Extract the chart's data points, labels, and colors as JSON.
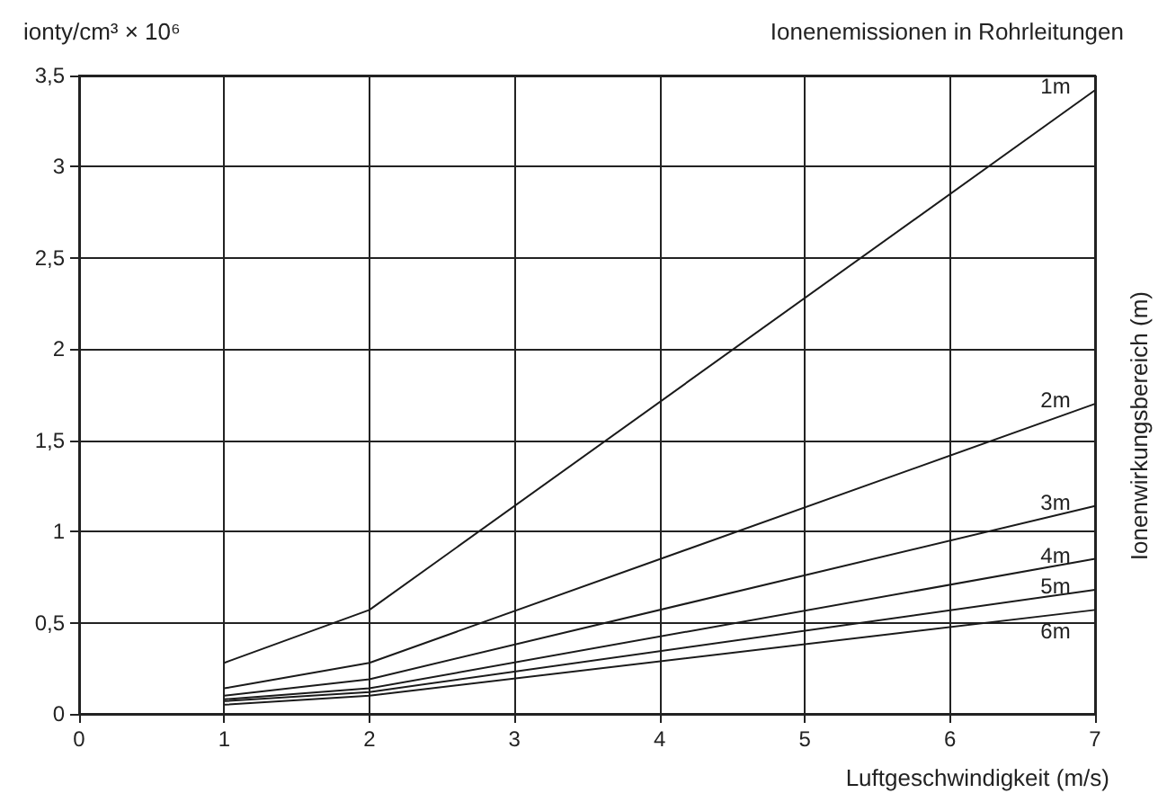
{
  "chart_data": {
    "type": "line",
    "title": "Ionenemissionen in Rohrleitungen",
    "xlabel": "Luftgeschwindigkeit (m/s)",
    "ylabel": "ionty/cm³ × 10⁶",
    "y2label": "Ionenwirkungsbereich (m)",
    "x": [
      1,
      2,
      7
    ],
    "series": [
      {
        "name": "1m",
        "color": "#1a1a1a",
        "values": [
          0.28,
          0.57,
          3.42
        ]
      },
      {
        "name": "2m",
        "color": "#1a1a1a",
        "values": [
          0.14,
          0.28,
          1.7
        ]
      },
      {
        "name": "3m",
        "color": "#1a1a1a",
        "values": [
          0.1,
          0.19,
          1.14
        ]
      },
      {
        "name": "4m",
        "color": "#1a1a1a",
        "values": [
          0.08,
          0.14,
          0.85
        ]
      },
      {
        "name": "5m",
        "color": "#1a1a1a",
        "values": [
          0.07,
          0.12,
          0.68
        ]
      },
      {
        "name": "6m",
        "color": "#1a1a1a",
        "values": [
          0.05,
          0.1,
          0.57
        ]
      }
    ],
    "xlim": [
      0,
      7
    ],
    "xticks": [
      0,
      1,
      2,
      3,
      4,
      5,
      6,
      7
    ],
    "ylim": [
      0,
      3.5
    ],
    "yticks": [
      0,
      {
        "value": 0.5,
        "label": "0,5"
      },
      1,
      {
        "value": 1.5,
        "label": "1,5"
      },
      2,
      {
        "value": 2.5,
        "label": "2,5"
      },
      3,
      {
        "value": 3.5,
        "label": "3,5"
      }
    ],
    "grid": true,
    "legend": false,
    "marker": "none",
    "line_style": "solid"
  }
}
